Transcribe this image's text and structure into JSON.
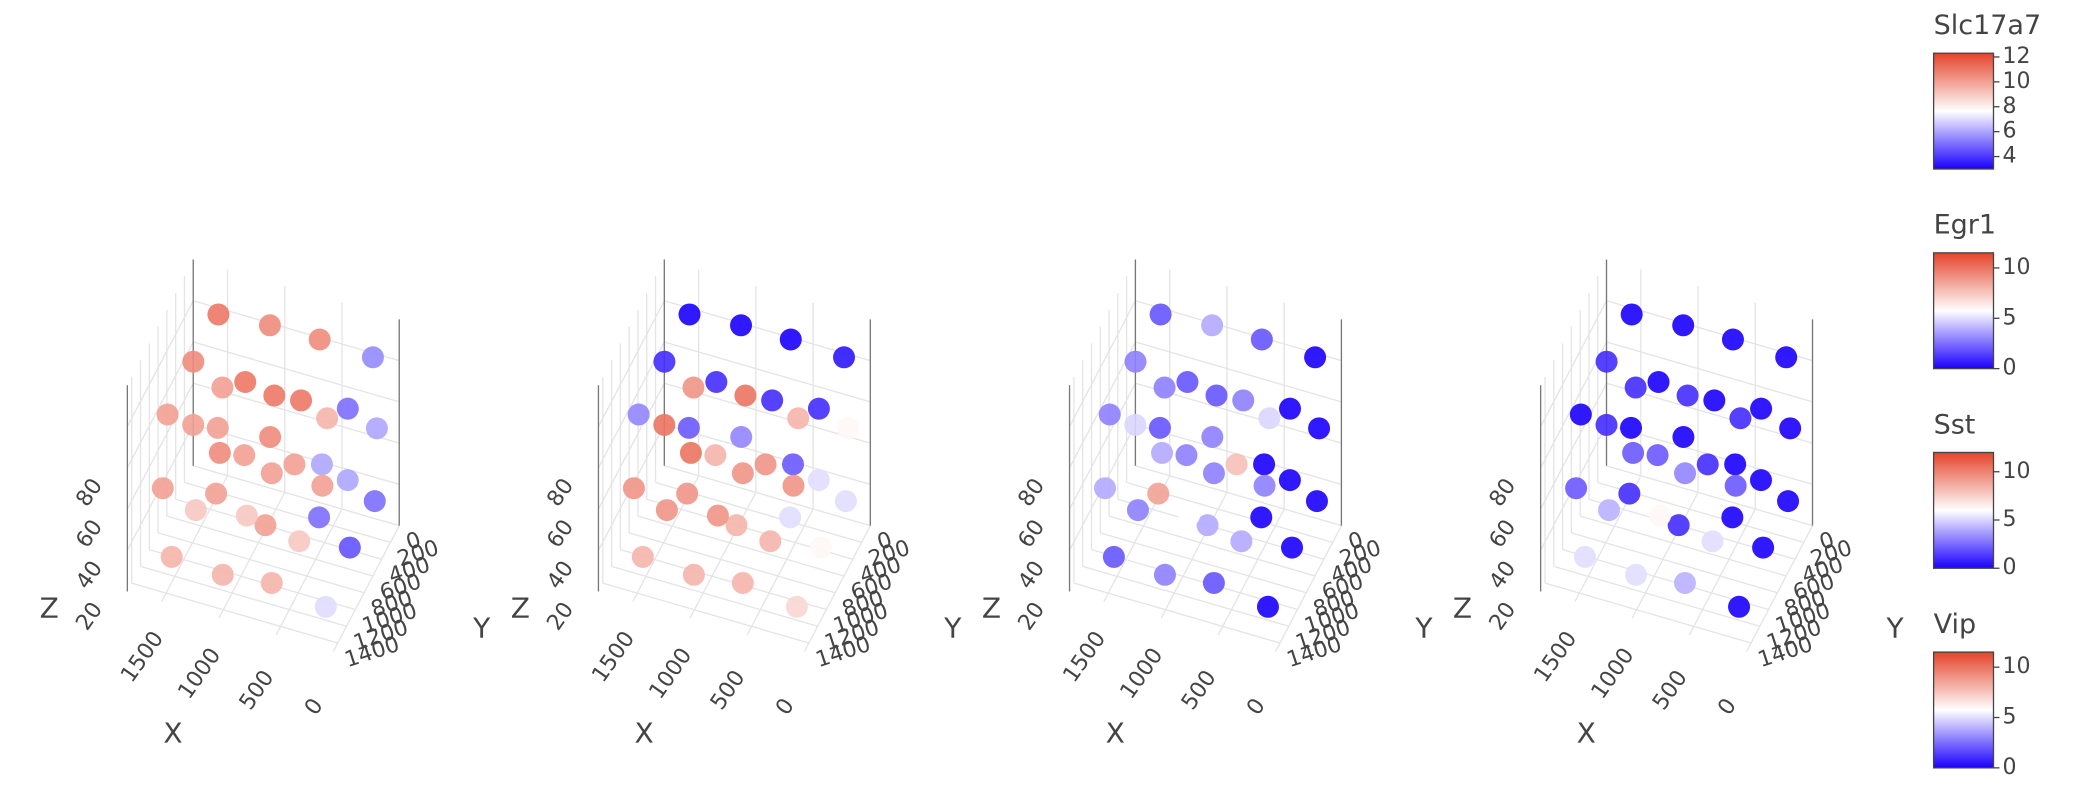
{
  "chart_data": {
    "type": "scatter3d",
    "xlabel": "X",
    "ylabel": "Y",
    "zlabel": "Z",
    "xlim": [
      0,
      1800
    ],
    "ylim": [
      0,
      1500
    ],
    "zlim": [
      0,
      100
    ],
    "xticks": [
      0,
      500,
      1000,
      1500
    ],
    "yticks": [
      0,
      200,
      400,
      600,
      800,
      1000,
      1200,
      1400
    ],
    "zticks": [
      20,
      40,
      60,
      80
    ],
    "colorscale": [
      "#1a00ff",
      "#ffffff",
      "#e5432a"
    ],
    "x": [
      160,
      130,
      180,
      140,
      170,
      150,
      120,
      190,
      150,
      610,
      580,
      630,
      590,
      620,
      570,
      600,
      640,
      610,
      1060,
      1030,
      1080,
      1040,
      1070,
      1050,
      1020,
      1090,
      1060,
      1510,
      1480,
      1530,
      1490,
      1520,
      1500,
      1470,
      1540,
      1510
    ],
    "y": [
      140,
      170,
      130,
      760,
      730,
      780,
      1360,
      1330,
      1370,
      160,
      130,
      170,
      740,
      770,
      750,
      1340,
      1380,
      1350,
      140,
      160,
      130,
      760,
      740,
      770,
      1360,
      1330,
      1370,
      150,
      170,
      130,
      750,
      730,
      780,
      1350,
      1370,
      1340
    ],
    "z": [
      15,
      52,
      84,
      18,
      49,
      86,
      14,
      55,
      83,
      16,
      48,
      87,
      13,
      51,
      82,
      17,
      46,
      88,
      14,
      53,
      85,
      19,
      47,
      84,
      15,
      52,
      86,
      17,
      50,
      83,
      14,
      54,
      87,
      16,
      49,
      84
    ],
    "series": [
      {
        "name": "Slc17a7",
        "clim": [
          3,
          12.3
        ],
        "cticks": [
          4,
          6,
          8,
          10,
          12
        ],
        "values": [
          5,
          6,
          5.5,
          4.5,
          6,
          5,
          7,
          5,
          6,
          10,
          9.5,
          10.5,
          9,
          10,
          11,
          9.5,
          10,
          10.5,
          10,
          11,
          10.5,
          9,
          10,
          11,
          9.5,
          10,
          10,
          10.5,
          10,
          11,
          9,
          10,
          10.5,
          9.5,
          10,
          10
        ]
      },
      {
        "name": "Egr1",
        "clim": [
          0,
          11.5
        ],
        "cticks": [
          0,
          5,
          10
        ],
        "values": [
          5,
          6,
          0.5,
          6,
          5,
          1,
          7,
          5,
          2,
          9,
          8,
          0,
          8,
          9,
          1,
          8,
          8,
          3,
          9,
          10,
          0,
          9,
          8,
          1,
          8,
          9,
          2,
          10,
          9,
          0,
          9,
          10,
          1,
          8,
          9,
          3
        ]
      },
      {
        "name": "Sst",
        "clim": [
          0,
          12
        ],
        "cticks": [
          0,
          5,
          10
        ],
        "values": [
          0,
          0,
          0,
          0,
          0,
          0,
          0,
          0,
          0,
          3,
          5,
          2,
          4,
          8,
          3,
          2,
          4,
          3,
          3,
          2,
          4,
          6,
          3,
          2,
          3,
          9,
          2,
          4,
          3,
          2,
          3,
          5,
          3,
          2,
          4,
          3
        ]
      },
      {
        "name": "Vip",
        "clim": [
          0,
          11.5
        ],
        "cticks": [
          0,
          5,
          10
        ],
        "values": [
          0,
          0,
          0,
          0,
          0,
          0,
          0,
          0,
          0,
          2,
          1,
          0,
          5,
          1,
          0,
          4,
          1,
          0,
          3,
          1,
          0,
          6,
          2,
          0,
          5,
          1,
          0,
          2,
          1,
          0,
          4,
          1,
          1,
          5,
          2,
          0
        ]
      }
    ]
  }
}
